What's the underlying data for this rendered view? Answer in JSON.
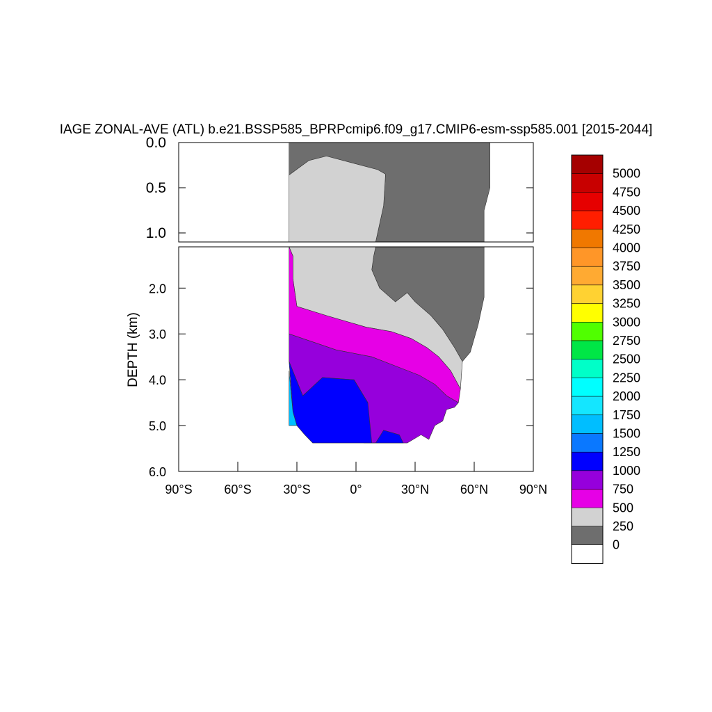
{
  "chart_data": {
    "type": "heatmap",
    "title": "IAGE ZONAL-AVE (ATL) b.e21.BSSP585_BPRPcmip6.f09_g17.CMIP6-esm-ssp585.001 [2015-2044]",
    "ylabel": "DEPTH (km)",
    "xlabel": "",
    "x_ticks": [
      {
        "value": -90,
        "label": "90°S"
      },
      {
        "value": -60,
        "label": "60°S"
      },
      {
        "value": -30,
        "label": "30°S"
      },
      {
        "value": 0,
        "label": "0°"
      },
      {
        "value": 30,
        "label": "30°N"
      },
      {
        "value": 60,
        "label": "60°N"
      },
      {
        "value": 90,
        "label": "90°N"
      }
    ],
    "xlim": [
      -90,
      90
    ],
    "upper_panel": {
      "ylim": [
        0,
        1.1
      ],
      "y_ticks": [
        {
          "value": 0,
          "label": "0.0"
        },
        {
          "value": 0.5,
          "label": "0.5"
        },
        {
          "value": 1.0,
          "label": "1.0"
        }
      ]
    },
    "lower_panel": {
      "ylim": [
        1.1,
        6.0
      ],
      "y_ticks": [
        {
          "value": 2,
          "label": "2.0"
        },
        {
          "value": 3,
          "label": "3.0"
        },
        {
          "value": 4,
          "label": "4.0"
        },
        {
          "value": 5,
          "label": "5.0"
        },
        {
          "value": 6,
          "label": "6.0"
        }
      ]
    },
    "colorbar": {
      "levels": [
        "5000",
        "4750",
        "4500",
        "4250",
        "4000",
        "3750",
        "3500",
        "3250",
        "3000",
        "2750",
        "2500",
        "2250",
        "2000",
        "1750",
        "1500",
        "1250",
        "1000",
        "750",
        "500",
        "250",
        "0"
      ],
      "colors": [
        "#a50000",
        "#c80000",
        "#e60000",
        "#ff1e00",
        "#f07800",
        "#ff9628",
        "#ffaa32",
        "#ffd232",
        "#ffff00",
        "#50ff00",
        "#00e646",
        "#00ffc8",
        "#00ffff",
        "#14e6ff",
        "#00beff",
        "#0a78ff",
        "#0000ff",
        "#9600dc",
        "#e600e6",
        "#d2d2d2",
        "#6e6e6e",
        "#ffffff"
      ]
    },
    "regions": [
      {
        "value_range": "250-500",
        "color": "#6e6e6e",
        "panel": "upper",
        "points": [
          [
            -34,
            0
          ],
          [
            68,
            0
          ],
          [
            68,
            0.5
          ],
          [
            65,
            0.75
          ],
          [
            65,
            1.1
          ],
          [
            10,
            1.1
          ],
          [
            12,
            0.9
          ],
          [
            14,
            0.7
          ],
          [
            15,
            0.35
          ],
          [
            11,
            0.3
          ],
          [
            -15,
            0.15
          ],
          [
            -24,
            0.2
          ],
          [
            -34,
            0.36
          ]
        ]
      },
      {
        "value_range": "0-250",
        "color": "#d2d2d2",
        "panel": "upper",
        "points": [
          [
            -34,
            0.36
          ],
          [
            -24,
            0.2
          ],
          [
            -15,
            0.15
          ],
          [
            11,
            0.3
          ],
          [
            15,
            0.35
          ],
          [
            14,
            0.7
          ],
          [
            12,
            0.9
          ],
          [
            10,
            1.1
          ],
          [
            -34,
            1.1
          ]
        ]
      },
      {
        "value_range": "250-500",
        "color": "#6e6e6e",
        "panel": "lower",
        "points": [
          [
            10,
            1.1
          ],
          [
            65,
            1.1
          ],
          [
            65,
            2.2
          ],
          [
            62,
            2.8
          ],
          [
            58,
            3.4
          ],
          [
            54,
            3.6
          ],
          [
            50,
            3.3
          ],
          [
            44,
            2.9
          ],
          [
            38,
            2.6
          ],
          [
            30,
            2.3
          ],
          [
            26,
            2.1
          ],
          [
            20,
            2.3
          ],
          [
            12,
            2.0
          ],
          [
            8,
            1.6
          ],
          [
            9,
            1.3
          ]
        ]
      },
      {
        "value_range": "0-250",
        "color": "#d2d2d2",
        "panel": "lower",
        "points": [
          [
            -34,
            1.1
          ],
          [
            10,
            1.1
          ],
          [
            9,
            1.3
          ],
          [
            8,
            1.6
          ],
          [
            12,
            2.0
          ],
          [
            20,
            2.3
          ],
          [
            26,
            2.1
          ],
          [
            30,
            2.3
          ],
          [
            38,
            2.6
          ],
          [
            44,
            2.9
          ],
          [
            50,
            3.3
          ],
          [
            54,
            3.6
          ],
          [
            53,
            4.2
          ],
          [
            48,
            3.8
          ],
          [
            42,
            3.5
          ],
          [
            36,
            3.3
          ],
          [
            28,
            3.1
          ],
          [
            18,
            2.95
          ],
          [
            5,
            2.85
          ],
          [
            -15,
            2.6
          ],
          [
            -30,
            2.4
          ],
          [
            -32,
            1.8
          ],
          [
            -32,
            1.3
          ]
        ]
      },
      {
        "value_range": "500-750",
        "color": "#e600e6",
        "panel": "lower",
        "points": [
          [
            -34,
            1.1
          ],
          [
            -32,
            1.3
          ],
          [
            -32,
            1.8
          ],
          [
            -30,
            2.4
          ],
          [
            -15,
            2.6
          ],
          [
            5,
            2.85
          ],
          [
            18,
            2.95
          ],
          [
            28,
            3.1
          ],
          [
            36,
            3.3
          ],
          [
            42,
            3.5
          ],
          [
            48,
            3.8
          ],
          [
            53,
            4.2
          ],
          [
            52,
            4.5
          ],
          [
            46,
            4.35
          ],
          [
            40,
            4.1
          ],
          [
            32,
            3.9
          ],
          [
            20,
            3.7
          ],
          [
            8,
            3.5
          ],
          [
            -10,
            3.35
          ],
          [
            -34,
            3.0
          ]
        ]
      },
      {
        "value_range": "750-1000",
        "color": "#9600dc",
        "panel": "lower",
        "points": [
          [
            -34,
            3.0
          ],
          [
            -10,
            3.35
          ],
          [
            8,
            3.5
          ],
          [
            20,
            3.7
          ],
          [
            32,
            3.9
          ],
          [
            40,
            4.1
          ],
          [
            46,
            4.35
          ],
          [
            52,
            4.5
          ],
          [
            50,
            4.6
          ],
          [
            46,
            4.65
          ],
          [
            44,
            4.9
          ],
          [
            40,
            5.0
          ],
          [
            37,
            5.3
          ],
          [
            33,
            5.2
          ],
          [
            26,
            5.38
          ],
          [
            4,
            5.38
          ],
          [
            6,
            4.5
          ],
          [
            -1,
            4.0
          ],
          [
            -17,
            3.95
          ],
          [
            -27,
            4.35
          ],
          [
            -34,
            3.6
          ]
        ]
      },
      {
        "value_range": "1000-1250",
        "color": "#0000ff",
        "panel": "lower",
        "points": [
          [
            -34,
            3.6
          ],
          [
            -27,
            4.35
          ],
          [
            -17,
            3.95
          ],
          [
            -1,
            4.0
          ],
          [
            6,
            4.5
          ],
          [
            8,
            5.38
          ],
          [
            10,
            5.38
          ],
          [
            14,
            5.1
          ],
          [
            22,
            5.2
          ],
          [
            24,
            5.38
          ],
          [
            14,
            5.38
          ],
          [
            12,
            5.38
          ],
          [
            -12,
            5.38
          ],
          [
            -22,
            5.38
          ],
          [
            -26,
            5.2
          ],
          [
            -30,
            5.0
          ],
          [
            -32,
            4.7
          ]
        ]
      },
      {
        "value_range": "1250-1500",
        "color": "#00beff",
        "panel": "lower",
        "points": [
          [
            -34,
            3.8
          ],
          [
            -32,
            4.7
          ],
          [
            -30,
            5.0
          ],
          [
            -34,
            5.0
          ]
        ]
      }
    ]
  }
}
